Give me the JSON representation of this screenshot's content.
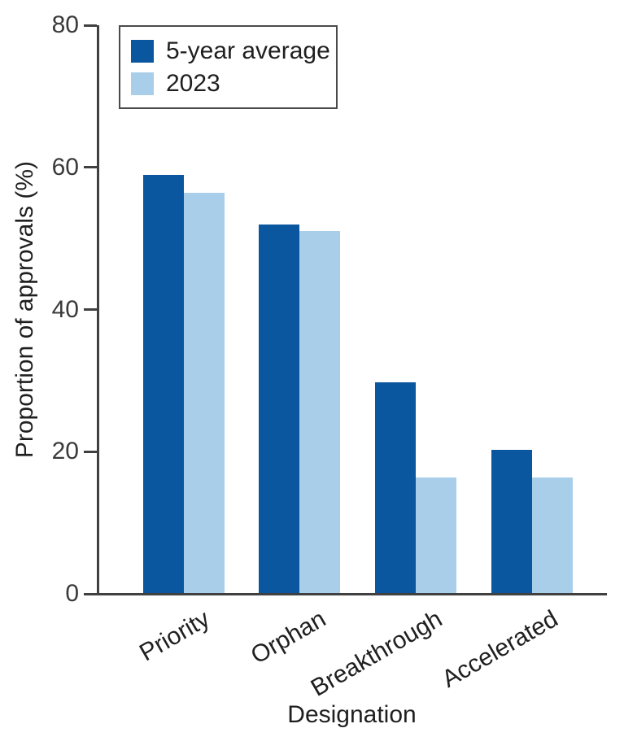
{
  "chart_data": {
    "type": "bar",
    "title": "",
    "xlabel": "Designation",
    "ylabel": "Proportion of approvals (%)",
    "categories": [
      "Priority",
      "Orphan",
      "Breakthrough",
      "Accelerated"
    ],
    "series": [
      {
        "name": "5-year average",
        "color": "#0a569f",
        "values": [
          59,
          52,
          29.8,
          20.3
        ]
      },
      {
        "name": "2023",
        "color": "#a9cee9",
        "values": [
          56.4,
          51,
          16.4,
          16.4
        ]
      }
    ],
    "ylim": [
      0,
      80
    ],
    "yticks": [
      0,
      20,
      40,
      60,
      80
    ],
    "grid": false,
    "legend_position": "upper-left"
  },
  "colors": {
    "axis": "#404040",
    "tick_text": "#3a3a3a",
    "label_text": "#1f1f1f",
    "legend_border": "#4a4a4a",
    "background": "#ffffff"
  }
}
